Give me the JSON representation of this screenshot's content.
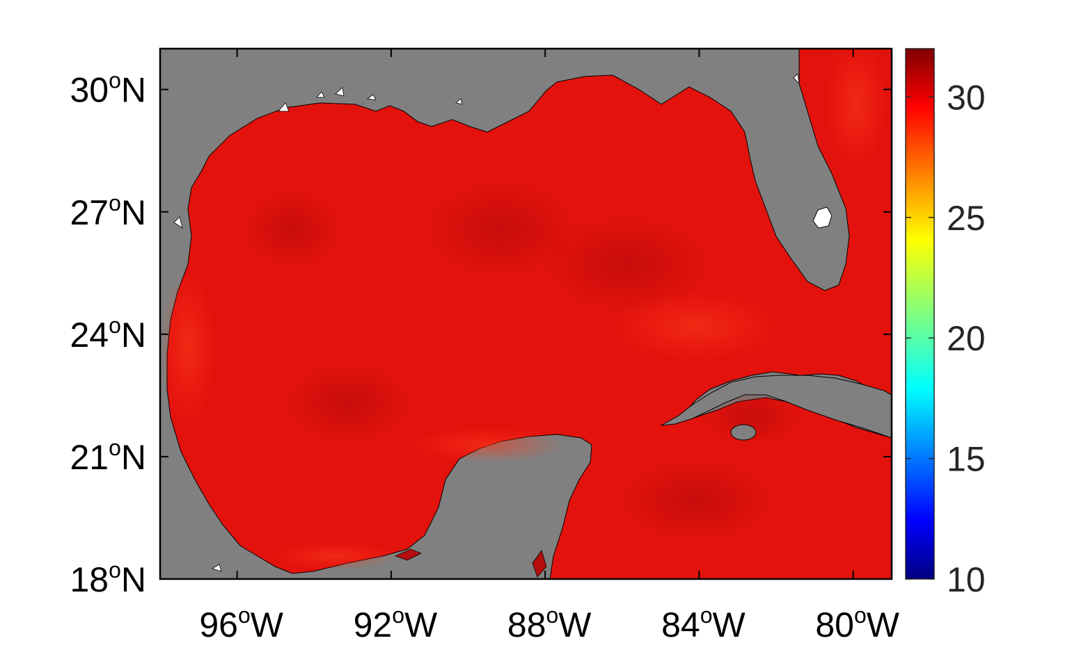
{
  "map": {
    "region": "Gulf of Mexico",
    "lon_range_deg": [
      -98,
      -79
    ],
    "lat_range_deg": [
      18,
      31
    ],
    "land_color": "#808080",
    "ocean_color_dominant": "#e6120e",
    "coastline_color": "#000000",
    "lat_ticks": [
      {
        "value": 30,
        "deg": "30",
        "sup": "o",
        "hemi": "N"
      },
      {
        "value": 27,
        "deg": "27",
        "sup": "o",
        "hemi": "N"
      },
      {
        "value": 24,
        "deg": "24",
        "sup": "o",
        "hemi": "N"
      },
      {
        "value": 21,
        "deg": "21",
        "sup": "o",
        "hemi": "N"
      },
      {
        "value": 18,
        "deg": "18",
        "sup": "o",
        "hemi": "N"
      }
    ],
    "lon_ticks": [
      {
        "value": -96,
        "deg": "96",
        "sup": "o",
        "hemi": "W"
      },
      {
        "value": -92,
        "deg": "92",
        "sup": "o",
        "hemi": "W"
      },
      {
        "value": -88,
        "deg": "88",
        "sup": "o",
        "hemi": "W"
      },
      {
        "value": -84,
        "deg": "84",
        "sup": "o",
        "hemi": "W"
      },
      {
        "value": -80,
        "deg": "80",
        "sup": "o",
        "hemi": "W"
      }
    ]
  },
  "colorbar": {
    "colormap": "jet",
    "range": [
      10,
      32
    ],
    "ticks": [
      "30",
      "25",
      "20",
      "15",
      "10"
    ],
    "tick_values": [
      30,
      25,
      20,
      15,
      10
    ]
  }
}
